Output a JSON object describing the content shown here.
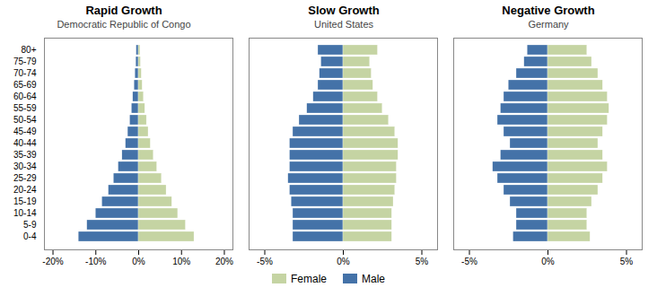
{
  "chart_data": [
    {
      "type": "bar",
      "orientation": "horizontal",
      "title": "Rapid Growth",
      "subtitle": "Democratic Republic of Congo",
      "categories": [
        "0-4",
        "5-9",
        "10-14",
        "15-19",
        "20-24",
        "25-29",
        "30-34",
        "35-39",
        "40-44",
        "45-49",
        "50-54",
        "55-59",
        "60-64",
        "65-69",
        "70-74",
        "75-79",
        "80+"
      ],
      "series": [
        {
          "name": "Male",
          "color": "#4472A8",
          "values": [
            -14.0,
            -12.0,
            -10.0,
            -8.5,
            -7.0,
            -5.8,
            -4.7,
            -3.8,
            -3.0,
            -2.5,
            -2.0,
            -1.6,
            -1.3,
            -1.0,
            -0.8,
            -0.6,
            -0.5
          ]
        },
        {
          "name": "Female",
          "color": "#C5D4A3",
          "values": [
            13.0,
            11.0,
            9.2,
            7.8,
            6.5,
            5.4,
            4.3,
            3.5,
            2.8,
            2.3,
            1.9,
            1.5,
            1.2,
            0.9,
            0.7,
            0.5,
            0.4
          ]
        }
      ],
      "xlim": [
        -22,
        22
      ],
      "xticks": [
        {
          "value": -20,
          "label": "-20%"
        },
        {
          "value": -10,
          "label": "-10%"
        },
        {
          "value": 0,
          "label": "0%"
        },
        {
          "value": 10,
          "label": "10%"
        },
        {
          "value": 20,
          "label": "20%"
        }
      ],
      "grid": false
    },
    {
      "type": "bar",
      "orientation": "horizontal",
      "title": "Slow Growth",
      "subtitle": "United States",
      "categories": [
        "0-4",
        "5-9",
        "10-14",
        "15-19",
        "20-24",
        "25-29",
        "30-34",
        "35-39",
        "40-44",
        "45-49",
        "50-54",
        "55-59",
        "60-64",
        "65-69",
        "70-74",
        "75-79",
        "80+"
      ],
      "series": [
        {
          "name": "Male",
          "color": "#4472A8",
          "values": [
            -3.2,
            -3.2,
            -3.2,
            -3.3,
            -3.4,
            -3.5,
            -3.4,
            -3.4,
            -3.4,
            -3.2,
            -2.8,
            -2.3,
            -1.9,
            -1.6,
            -1.5,
            -1.4,
            -1.6
          ]
        },
        {
          "name": "Female",
          "color": "#C5D4A3",
          "values": [
            3.1,
            3.1,
            3.1,
            3.2,
            3.3,
            3.4,
            3.4,
            3.5,
            3.5,
            3.3,
            2.9,
            2.5,
            2.2,
            1.9,
            1.8,
            1.7,
            2.2
          ]
        }
      ],
      "xlim": [
        -6,
        6
      ],
      "xticks": [
        {
          "value": -5,
          "label": "-5%"
        },
        {
          "value": 0,
          "label": "0%"
        },
        {
          "value": 5,
          "label": "5%"
        }
      ],
      "grid": false,
      "tick_labels": "x"
    },
    {
      "type": "bar",
      "orientation": "horizontal",
      "title": "Negative Growth",
      "subtitle": "Germany",
      "categories": [
        "0-4",
        "5-9",
        "10-14",
        "15-19",
        "20-24",
        "25-29",
        "30-34",
        "35-39",
        "40-44",
        "45-49",
        "50-54",
        "55-59",
        "60-64",
        "65-69",
        "70-74",
        "75-79",
        "80+"
      ],
      "series": [
        {
          "name": "Male",
          "color": "#4472A8",
          "values": [
            -2.2,
            -2.0,
            -2.0,
            -2.4,
            -2.8,
            -3.2,
            -3.5,
            -3.0,
            -2.4,
            -2.8,
            -3.2,
            -3.0,
            -2.8,
            -2.5,
            -2.0,
            -1.5,
            -1.3
          ]
        },
        {
          "name": "Female",
          "color": "#C5D4A3",
          "values": [
            2.7,
            2.5,
            2.5,
            2.8,
            3.2,
            3.5,
            3.8,
            3.5,
            3.2,
            3.5,
            3.8,
            3.9,
            3.8,
            3.5,
            3.2,
            2.8,
            2.5
          ]
        }
      ],
      "xlim": [
        -6,
        6
      ],
      "xticks": [
        {
          "value": -5,
          "label": "-5%"
        },
        {
          "value": 0,
          "label": "0%"
        },
        {
          "value": 5,
          "label": "5%"
        }
      ],
      "grid": false,
      "tick_labels": "x"
    }
  ]
}
